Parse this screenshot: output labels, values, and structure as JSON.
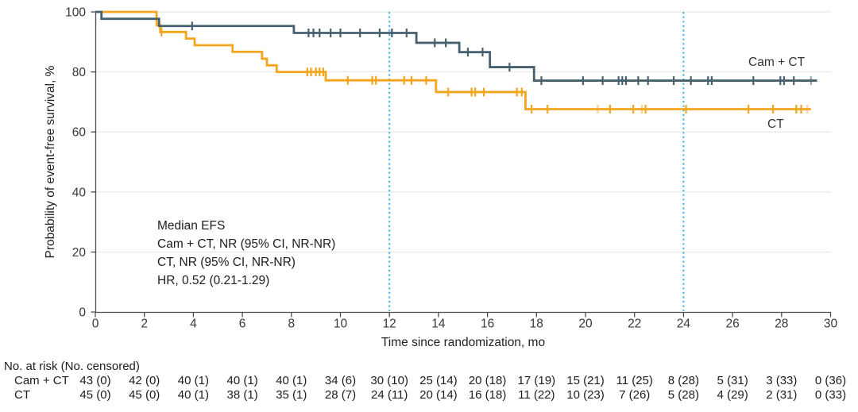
{
  "chart_data": {
    "type": "line",
    "subtype": "kaplan-meier-step-curve",
    "title": "",
    "xlabel": "Time since randomization, mo",
    "ylabel": "Probability of event-free survival, %",
    "xlim": [
      0,
      30
    ],
    "ylim": [
      0,
      100
    ],
    "xticks": [
      0,
      2,
      4,
      6,
      8,
      10,
      12,
      14,
      16,
      18,
      20,
      22,
      24,
      26,
      28,
      30
    ],
    "yticks": [
      0,
      20,
      40,
      60,
      80,
      100
    ],
    "grid": "horizontal-light",
    "legend_position": "curve-end-labels",
    "reference_lines_x": [
      12,
      24
    ],
    "annotation": {
      "lines": [
        "Median EFS",
        "Cam + CT, NR (95% CI, NR-NR)",
        "CT, NR (95% CI, NR-NR)",
        "HR, 0.52 (0.21-1.29)"
      ]
    },
    "series": [
      {
        "name": "Cam + CT",
        "color": "#47606f",
        "steps": [
          [
            0,
            100
          ],
          [
            0.25,
            97.7
          ],
          [
            2.6,
            95.3
          ],
          [
            8.1,
            93.0
          ],
          [
            13.1,
            89.7
          ],
          [
            14.85,
            86.6
          ],
          [
            16.1,
            81.6
          ],
          [
            17.9,
            77.1
          ]
        ],
        "end_time": 29.45,
        "censors": [
          [
            3.95,
            95.3
          ],
          [
            8.7,
            93.0
          ],
          [
            8.9,
            93.0
          ],
          [
            9.15,
            93.0
          ],
          [
            9.6,
            93.0
          ],
          [
            10.0,
            93.0
          ],
          [
            10.8,
            93.0
          ],
          [
            11.6,
            93.0
          ],
          [
            12.1,
            93.0
          ],
          [
            12.7,
            93.0
          ],
          [
            13.85,
            89.7
          ],
          [
            14.3,
            89.7
          ],
          [
            15.2,
            86.6
          ],
          [
            15.8,
            86.6
          ],
          [
            16.9,
            81.6
          ],
          [
            18.2,
            77.1
          ],
          [
            19.9,
            77.1
          ],
          [
            20.7,
            77.1
          ],
          [
            21.35,
            77.1
          ],
          [
            21.5,
            77.1
          ],
          [
            21.65,
            77.1
          ],
          [
            22.15,
            77.1
          ],
          [
            22.55,
            77.1
          ],
          [
            23.6,
            77.1
          ],
          [
            24.3,
            77.1
          ],
          [
            25.0,
            77.1
          ],
          [
            25.15,
            77.1
          ],
          [
            26.85,
            77.1
          ],
          [
            27.95,
            77.1
          ],
          [
            28.1,
            77.1
          ],
          [
            28.5,
            77.1
          ],
          [
            29.2,
            77.1,
            0.55
          ]
        ]
      },
      {
        "name": "CT",
        "color": "#f2a51d",
        "steps": [
          [
            0,
            100
          ],
          [
            2.5,
            95.6
          ],
          [
            2.65,
            93.3
          ],
          [
            3.7,
            91.1
          ],
          [
            4.05,
            88.9
          ],
          [
            5.6,
            86.7
          ],
          [
            6.8,
            84.4
          ],
          [
            7.0,
            82.2
          ],
          [
            7.4,
            80.0
          ],
          [
            9.4,
            77.2
          ],
          [
            13.9,
            73.3
          ],
          [
            17.55,
            67.6
          ]
        ],
        "end_time": 29.2,
        "censors": [
          [
            2.7,
            93.3
          ],
          [
            8.65,
            80.0
          ],
          [
            8.8,
            80.0
          ],
          [
            9.0,
            80.0
          ],
          [
            9.15,
            80.0
          ],
          [
            9.3,
            80.0
          ],
          [
            10.3,
            77.2
          ],
          [
            11.3,
            77.2
          ],
          [
            11.45,
            77.2
          ],
          [
            12.6,
            77.2
          ],
          [
            12.9,
            77.2
          ],
          [
            13.5,
            77.2
          ],
          [
            14.4,
            73.3
          ],
          [
            15.35,
            73.3
          ],
          [
            15.5,
            73.3
          ],
          [
            15.85,
            73.3
          ],
          [
            17.2,
            73.3
          ],
          [
            17.4,
            73.3
          ],
          [
            17.8,
            67.6
          ],
          [
            18.45,
            67.6
          ],
          [
            20.5,
            67.6,
            0.5
          ],
          [
            21.0,
            67.6
          ],
          [
            21.95,
            67.6
          ],
          [
            22.3,
            67.6,
            0.5
          ],
          [
            22.45,
            67.6
          ],
          [
            24.1,
            67.6
          ],
          [
            26.65,
            67.6
          ],
          [
            27.65,
            67.6
          ],
          [
            28.6,
            67.6
          ],
          [
            28.8,
            67.6
          ],
          [
            29.05,
            67.6,
            0.45
          ]
        ]
      }
    ],
    "curve_labels": [
      {
        "text": "Cam + CT",
        "x": 942,
        "y": 83
      },
      {
        "text": "CT",
        "x": 966,
        "y": 161
      }
    ],
    "risk_table": {
      "title": "No. at risk (No. censored)",
      "times": [
        0,
        2,
        4,
        6,
        8,
        10,
        12,
        14,
        16,
        18,
        20,
        22,
        24,
        26,
        28,
        30
      ],
      "rows": [
        {
          "label": "Cam + CT",
          "values": [
            "43 (0)",
            "42 (0)",
            "40 (1)",
            "40 (1)",
            "40 (1)",
            "34 (6)",
            "30 (10)",
            "25 (14)",
            "20 (18)",
            "17 (19)",
            "15 (21)",
            "11 (25)",
            "8 (28)",
            "5 (31)",
            "3 (33)",
            "0 (36)"
          ]
        },
        {
          "label": "CT",
          "values": [
            "45 (0)",
            "45 (0)",
            "40 (1)",
            "38 (1)",
            "35 (1)",
            "28 (7)",
            "24 (11)",
            "20 (14)",
            "16 (18)",
            "11 (22)",
            "10 (23)",
            "7 (26)",
            "5 (28)",
            "4 (29)",
            "2 (31)",
            "0 (33)"
          ]
        }
      ]
    },
    "colors": {
      "grid": "#e4e4e4",
      "axis": "#4d4d4d",
      "tick_text": "#383838",
      "reference_line": "#35b4e5",
      "cam_ct_curve": "#47606f",
      "ct_curve": "#f2a51d"
    }
  }
}
